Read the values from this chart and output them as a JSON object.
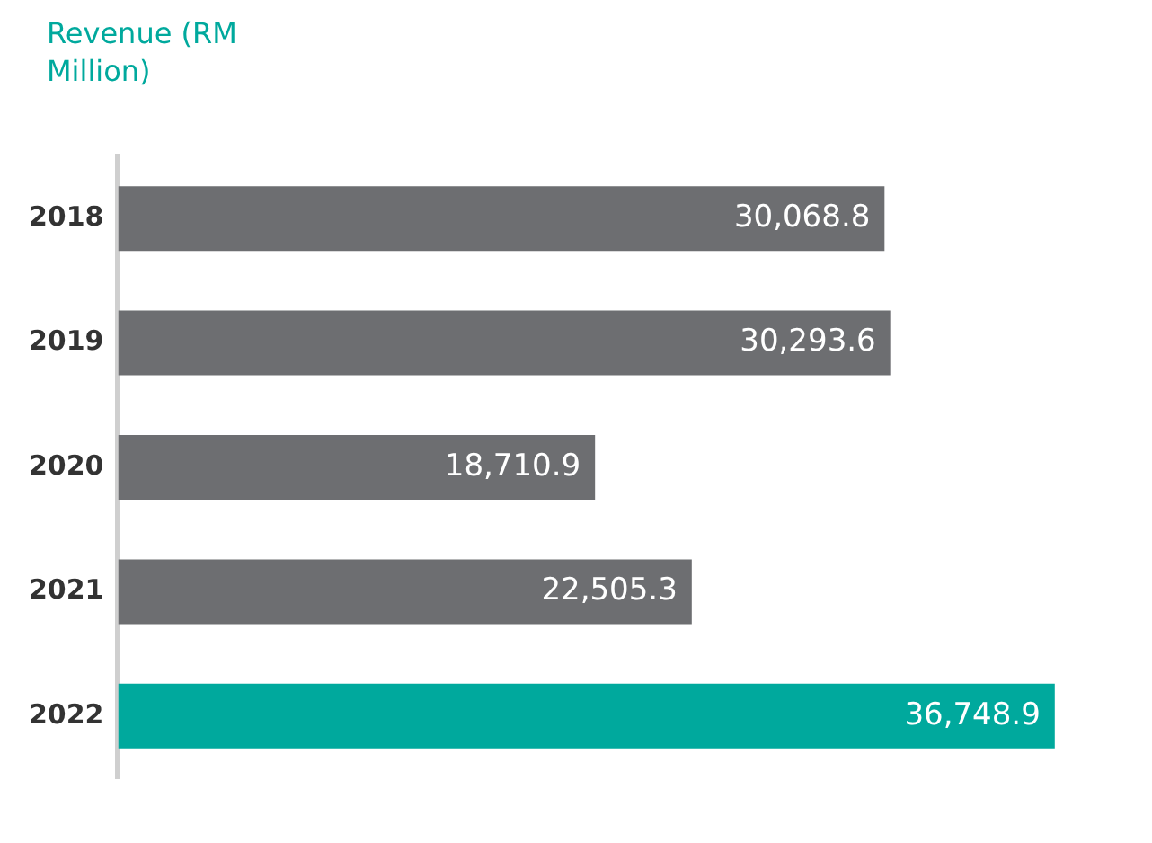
{
  "chart_data": {
    "type": "bar",
    "orientation": "horizontal",
    "title": "Revenue (RM Million)",
    "categories": [
      "2018",
      "2019",
      "2020",
      "2021",
      "2022"
    ],
    "values": [
      30068.8,
      30293.6,
      18710.9,
      22505.3,
      36748.9
    ],
    "colors": [
      "#6d6e71",
      "#6d6e71",
      "#6d6e71",
      "#6d6e71",
      "#00a99d"
    ],
    "value_labels": [
      "30,068.8",
      "30,293.6",
      "18,710.9",
      "22,505.3",
      "36,748.9"
    ],
    "grid": false,
    "legend": false
  }
}
